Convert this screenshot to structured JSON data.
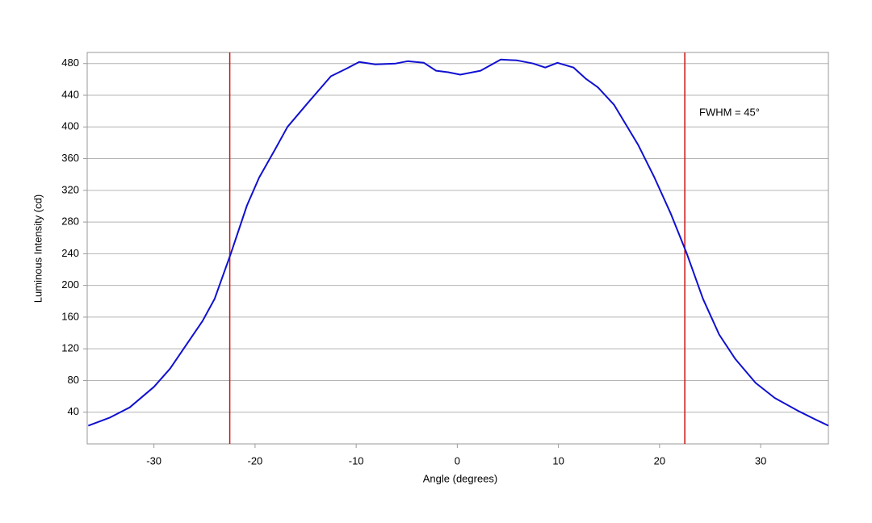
{
  "chart_data": {
    "type": "line",
    "x_label": "Angle (degrees)",
    "y_label": "Luminous Intensity (cd)",
    "annotation": "FWHM = 45°",
    "x": [
      -36.5,
      -34.4,
      -32.4,
      -30,
      -28.4,
      -26.8,
      -25.2,
      -24,
      -22.4,
      -20.8,
      -19.6,
      -18,
      -16.8,
      -14.8,
      -12.5,
      -10.9,
      -9.7,
      -8.1,
      -6.1,
      -4.9,
      -3.3,
      -2.1,
      -0.9,
      0.3,
      2.3,
      4.3,
      5.9,
      7.5,
      8.7,
      9.9,
      11.5,
      12.7,
      13.9,
      15.5,
      17.9,
      19.5,
      21.1,
      22.7,
      24.3,
      25.9,
      27.5,
      29.5,
      31.4,
      33.8,
      35.4,
      36.7
    ],
    "values": [
      23,
      33,
      46,
      72,
      95,
      125,
      155,
      183,
      240,
      301,
      336,
      372,
      400,
      430,
      464,
      474,
      482,
      479,
      480,
      483,
      481,
      471,
      469,
      466,
      471,
      485,
      484,
      480,
      475,
      481,
      475,
      461,
      450,
      428,
      377,
      336,
      291,
      240,
      183,
      138,
      107,
      77,
      58,
      41,
      31,
      23
    ],
    "color": "#1010d0",
    "vlines": [
      -22.5,
      22.5
    ],
    "vline_color": "#cc1111",
    "xlim": [
      -36.6,
      36.7
    ],
    "ylim": [
      0,
      494
    ],
    "xticks": [
      -30,
      -20,
      -10,
      0,
      10,
      20,
      30
    ],
    "yticks": [
      40,
      80,
      120,
      160,
      200,
      240,
      280,
      320,
      360,
      400,
      440,
      480
    ],
    "grid": true
  }
}
